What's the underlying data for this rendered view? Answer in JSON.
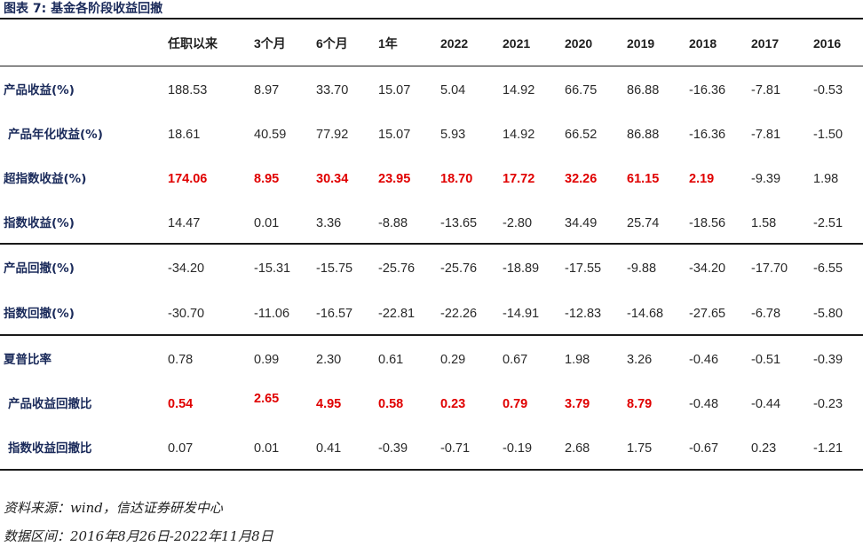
{
  "title": "图表 7: 基金各阶段收益回撤",
  "columns": [
    "任职以来",
    "3个月",
    "6个月",
    "1年",
    "2022",
    "2021",
    "2020",
    "2019",
    "2018",
    "2017",
    "2016"
  ],
  "rows": [
    {
      "label": "产品收益(%)",
      "values": [
        "188.53",
        "8.97",
        "33.70",
        "15.07",
        "5.04",
        "14.92",
        "66.75",
        "86.88",
        "-16.36",
        "-7.81",
        "-0.53"
      ],
      "highlight": []
    },
    {
      "label": "产品年化收益(%)",
      "values": [
        "18.61",
        "40.59",
        "77.92",
        "15.07",
        "5.93",
        "14.92",
        "66.52",
        "86.88",
        "-16.36",
        "-7.81",
        "-1.50"
      ],
      "highlight": []
    },
    {
      "label": "超指数收益(%)",
      "values": [
        "174.06",
        "8.95",
        "30.34",
        "23.95",
        "18.70",
        "17.72",
        "32.26",
        "61.15",
        "2.19",
        "-9.39",
        "1.98"
      ],
      "highlight": [
        0,
        1,
        2,
        3,
        4,
        5,
        6,
        7,
        8
      ]
    },
    {
      "label": "指数收益(%)",
      "values": [
        "14.47",
        "0.01",
        "3.36",
        "-8.88",
        "-13.65",
        "-2.80",
        "34.49",
        "25.74",
        "-18.56",
        "1.58",
        "-2.51"
      ],
      "highlight": []
    },
    {
      "label": "产品回撤(%)",
      "values": [
        "-34.20",
        "-15.31",
        "-15.75",
        "-25.76",
        "-25.76",
        "-18.89",
        "-17.55",
        "-9.88",
        "-34.20",
        "-17.70",
        "-6.55"
      ],
      "highlight": []
    },
    {
      "label": "指数回撤(%)",
      "values": [
        "-30.70",
        "-11.06",
        "-16.57",
        "-22.81",
        "-22.26",
        "-14.91",
        "-12.83",
        "-14.68",
        "-27.65",
        "-6.78",
        "-5.80"
      ],
      "highlight": []
    },
    {
      "label": "夏普比率",
      "values": [
        "0.78",
        "0.99",
        "2.30",
        "0.61",
        "0.29",
        "0.67",
        "1.98",
        "3.26",
        "-0.46",
        "-0.51",
        "-0.39"
      ],
      "highlight": []
    },
    {
      "label": "产品收益回撤比",
      "values": [
        "0.54",
        "2.65",
        "4.95",
        "0.58",
        "0.23",
        "0.79",
        "3.79",
        "8.79",
        "-0.48",
        "-0.44",
        "-0.23"
      ],
      "highlight": [
        0,
        1,
        2,
        3,
        4,
        5,
        6,
        7
      ]
    },
    {
      "label": "指数收益回撤比",
      "values": [
        "0.07",
        "0.01",
        "0.41",
        "-0.39",
        "-0.71",
        "-0.19",
        "2.68",
        "1.75",
        "-0.67",
        "0.23",
        "-1.21"
      ],
      "highlight": []
    }
  ],
  "footer": {
    "source": "资料来源：wind，信达证券研发中心",
    "period": "数据区间：2016年8月26日-2022年11月8日"
  }
}
